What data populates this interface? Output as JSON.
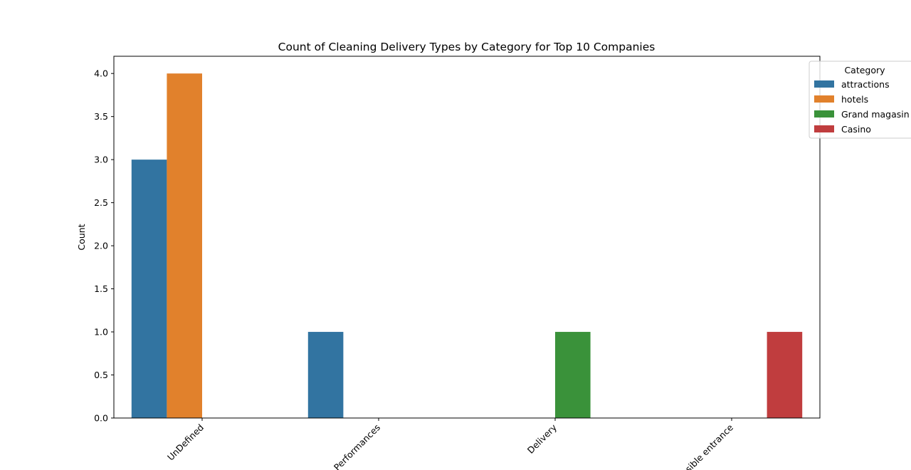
{
  "chart_data": {
    "type": "bar",
    "title": "Count of Cleaning Delivery Types by Category for Top 10 Companies",
    "xlabel": "",
    "ylabel": "Count",
    "ylim": [
      0,
      4.2
    ],
    "yticks": [
      "0.0",
      "0.5",
      "1.0",
      "1.5",
      "2.0",
      "2.5",
      "3.0",
      "3.5",
      "4.0"
    ],
    "categories": [
      "UnDefined",
      "Performances",
      "Delivery",
      "Accessible entrance"
    ],
    "series": [
      {
        "name": "attractions",
        "color": "#3274a1",
        "values": [
          3,
          1,
          0,
          0
        ]
      },
      {
        "name": "hotels",
        "color": "#e1812c",
        "values": [
          4,
          0,
          0,
          0
        ]
      },
      {
        "name": "Grand magasin",
        "color": "#3a923a",
        "values": [
          0,
          0,
          1,
          0
        ]
      },
      {
        "name": "Casino",
        "color": "#c03d3e",
        "values": [
          0,
          0,
          0,
          1
        ]
      }
    ],
    "legend": {
      "title": "Category",
      "position": "top-right"
    },
    "grid": false
  }
}
